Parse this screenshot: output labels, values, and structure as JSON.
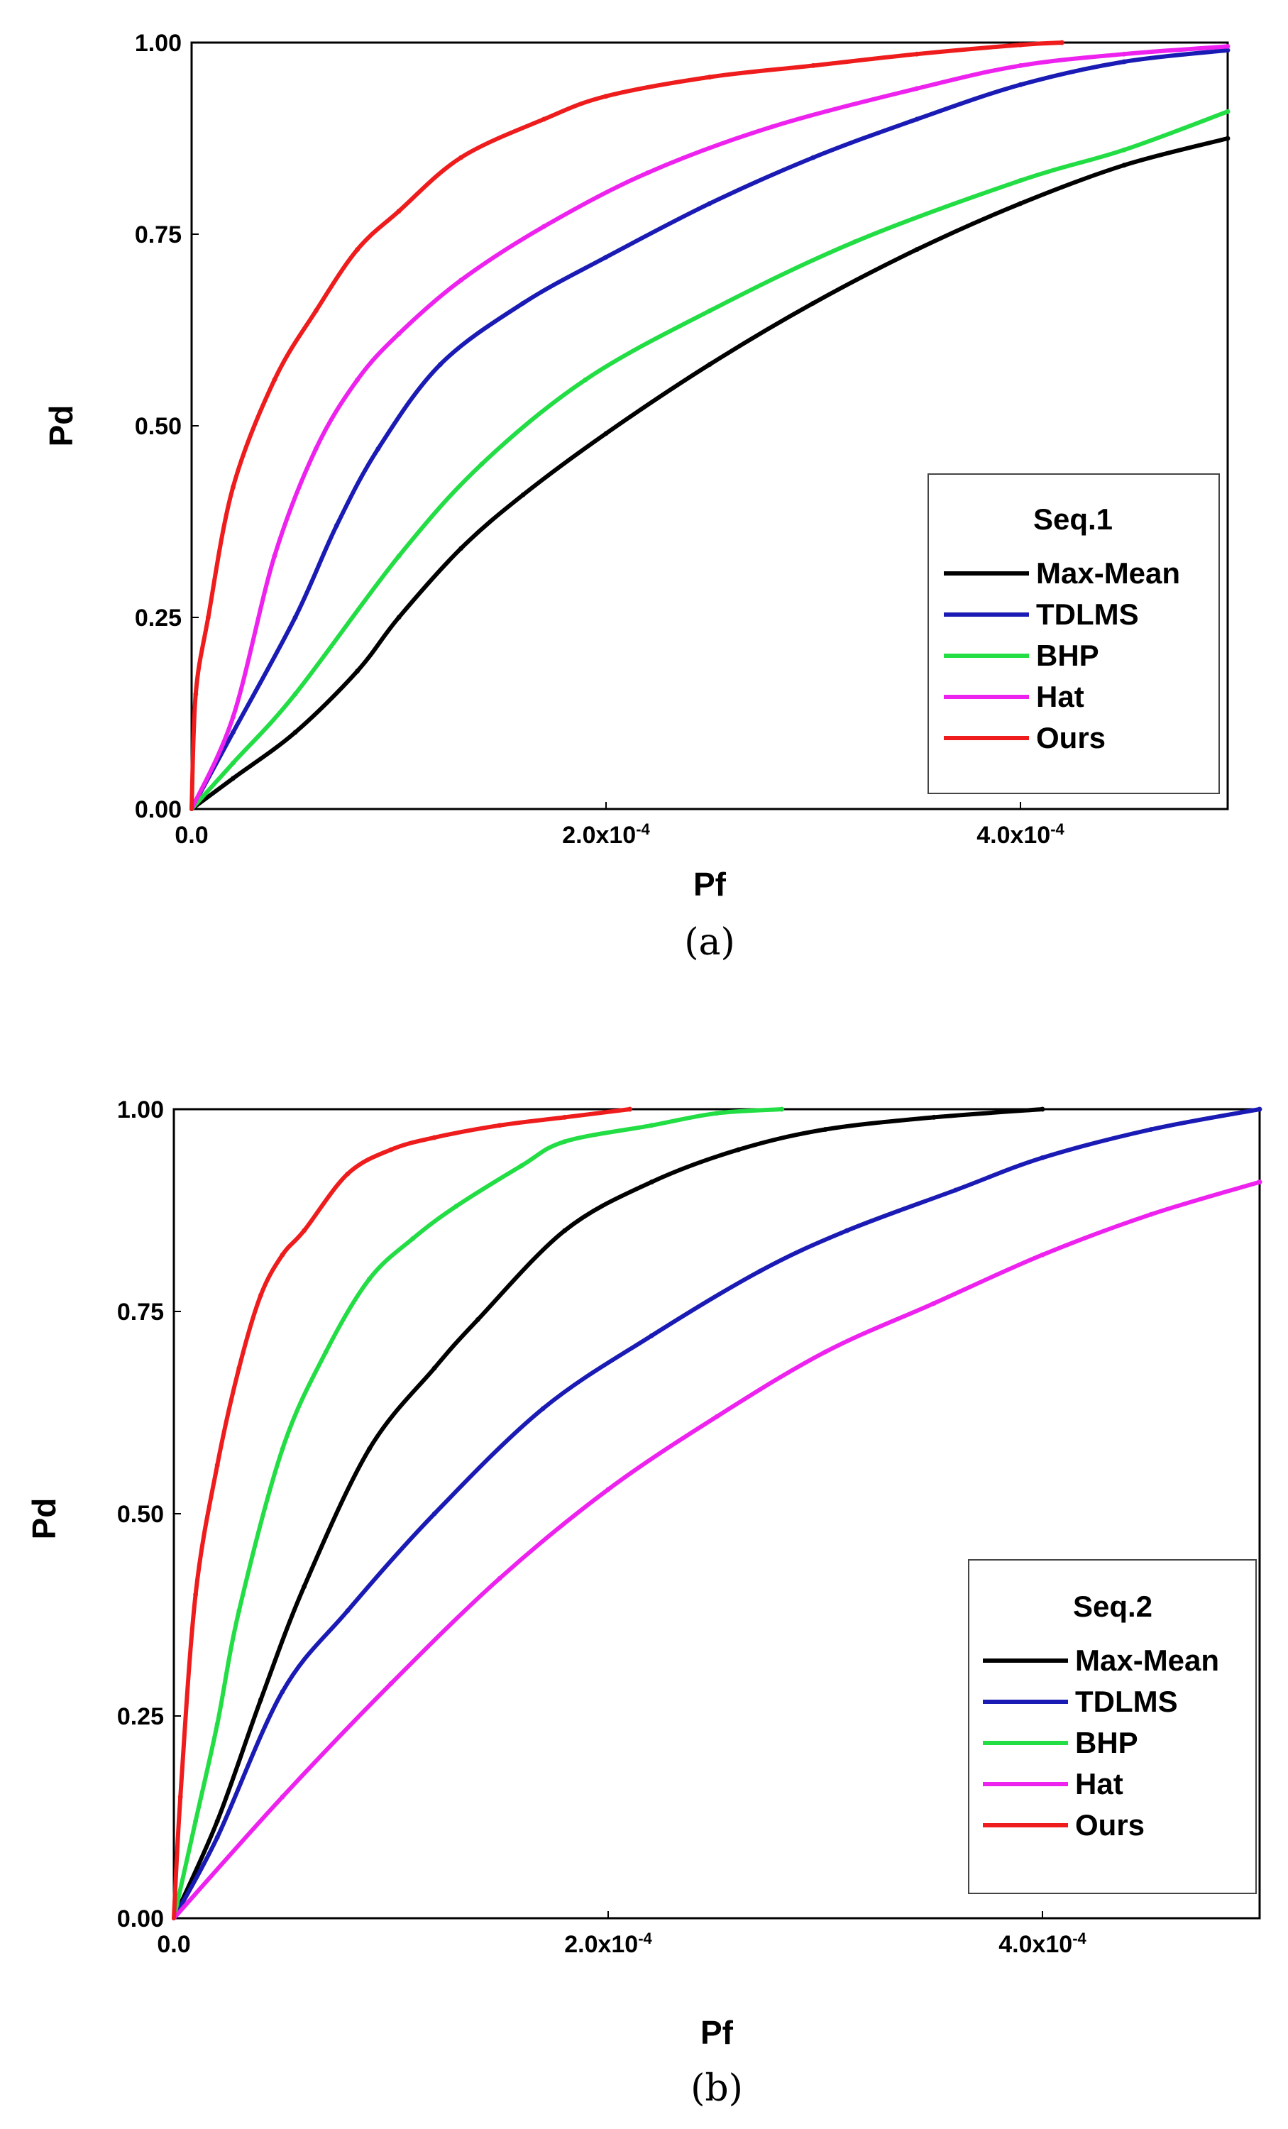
{
  "colors": {
    "Max-Mean": "#000000",
    "TDLMS": "#1a1ab4",
    "BHP": "#22dd44",
    "Hat": "#ee22ee",
    "Ours": "#ee1c1c"
  },
  "chart_data": [
    {
      "type": "line",
      "panel_label": "(a)",
      "xlabel": "Pf",
      "ylabel": "Pd",
      "xlim": [
        0,
        0.0005
      ],
      "ylim": [
        0,
        1
      ],
      "x_ticks": [
        {
          "value": 0,
          "label": "0.0"
        },
        {
          "value": 0.0002,
          "label": "2.0x10",
          "exp": "-4"
        },
        {
          "value": 0.0004,
          "label": "4.0x10",
          "exp": "-4"
        }
      ],
      "y_ticks": [
        {
          "value": 0,
          "label": "0.00"
        },
        {
          "value": 0.25,
          "label": "0.25"
        },
        {
          "value": 0.5,
          "label": "0.50"
        },
        {
          "value": 0.75,
          "label": "0.75"
        },
        {
          "value": 1,
          "label": "1.00"
        }
      ],
      "legend": {
        "title": "Seq.1",
        "position": "bottom-right"
      },
      "series": [
        {
          "name": "Max-Mean",
          "x": [
            0,
            2e-05,
            5e-05,
            8e-05,
            0.0001,
            0.00013,
            0.00016,
            0.0002,
            0.00025,
            0.0003,
            0.00035,
            0.0004,
            0.00045,
            0.0005
          ],
          "y": [
            0,
            0.04,
            0.1,
            0.18,
            0.25,
            0.34,
            0.41,
            0.49,
            0.58,
            0.66,
            0.73,
            0.79,
            0.84,
            0.875
          ]
        },
        {
          "name": "TDLMS",
          "x": [
            0,
            2e-05,
            5e-05,
            7e-05,
            9e-05,
            0.00012,
            0.00016,
            0.0002,
            0.00025,
            0.0003,
            0.00035,
            0.0004,
            0.00045,
            0.0005
          ],
          "y": [
            0,
            0.1,
            0.25,
            0.37,
            0.47,
            0.58,
            0.66,
            0.72,
            0.79,
            0.85,
            0.9,
            0.945,
            0.975,
            0.99
          ]
        },
        {
          "name": "BHP",
          "x": [
            0,
            2e-05,
            5e-05,
            0.0001,
            0.00014,
            0.00019,
            0.00025,
            0.00032,
            0.0004,
            0.00045,
            0.0005
          ],
          "y": [
            0,
            0.06,
            0.15,
            0.33,
            0.45,
            0.56,
            0.65,
            0.74,
            0.82,
            0.86,
            0.91
          ]
        },
        {
          "name": "Hat",
          "x": [
            0,
            2e-05,
            4e-05,
            6e-05,
            8e-05,
            0.0001,
            0.00013,
            0.00017,
            0.00022,
            0.00028,
            0.00035,
            0.0004,
            0.00045,
            0.0005
          ],
          "y": [
            0,
            0.12,
            0.33,
            0.47,
            0.56,
            0.62,
            0.69,
            0.76,
            0.83,
            0.89,
            0.94,
            0.97,
            0.985,
            0.995
          ]
        },
        {
          "name": "Ours",
          "x": [
            0,
            2e-06,
            8e-06,
            2e-05,
            4e-05,
            6e-05,
            8e-05,
            0.0001,
            0.00013,
            0.00017,
            0.0002,
            0.00025,
            0.0003,
            0.00035,
            0.0004,
            0.00042
          ],
          "y": [
            0,
            0.15,
            0.25,
            0.42,
            0.56,
            0.65,
            0.73,
            0.78,
            0.85,
            0.9,
            0.93,
            0.955,
            0.97,
            0.985,
            0.997,
            1.0
          ]
        }
      ]
    },
    {
      "type": "line",
      "panel_label": "(b)",
      "xlabel": "Pf",
      "ylabel": "Pd",
      "xlim": [
        0,
        0.0005
      ],
      "ylim": [
        0,
        1
      ],
      "x_ticks": [
        {
          "value": 0,
          "label": "0.0"
        },
        {
          "value": 0.0002,
          "label": "2.0x10",
          "exp": "-4"
        },
        {
          "value": 0.0004,
          "label": "4.0x10",
          "exp": "-4"
        }
      ],
      "y_ticks": [
        {
          "value": 0,
          "label": "0.00"
        },
        {
          "value": 0.25,
          "label": "0.25"
        },
        {
          "value": 0.5,
          "label": "0.50"
        },
        {
          "value": 0.75,
          "label": "0.75"
        },
        {
          "value": 1,
          "label": "1.00"
        }
      ],
      "legend": {
        "title": "Seq.2",
        "position": "bottom-right"
      },
      "series": [
        {
          "name": "Max-Mean",
          "x": [
            0,
            2e-05,
            4e-05,
            6e-05,
            9e-05,
            0.00012,
            0.00014,
            0.00018,
            0.00022,
            0.00026,
            0.0003,
            0.00035,
            0.0004
          ],
          "y": [
            0,
            0.12,
            0.27,
            0.41,
            0.58,
            0.68,
            0.74,
            0.85,
            0.91,
            0.95,
            0.975,
            0.99,
            1.0
          ]
        },
        {
          "name": "TDLMS",
          "x": [
            0,
            2e-05,
            5e-05,
            8e-05,
            0.00012,
            0.00017,
            0.00022,
            0.00027,
            0.00031,
            0.00036,
            0.0004,
            0.00045,
            0.0005
          ],
          "y": [
            0,
            0.1,
            0.28,
            0.38,
            0.5,
            0.63,
            0.72,
            0.8,
            0.85,
            0.9,
            0.94,
            0.975,
            1.0
          ]
        },
        {
          "name": "BHP",
          "x": [
            0,
            1e-05,
            2e-05,
            3e-05,
            5e-05,
            7e-05,
            9e-05,
            0.00011,
            0.00013,
            0.00016,
            0.00018,
            0.00022,
            0.00025,
            0.00028
          ],
          "y": [
            0,
            0.12,
            0.24,
            0.38,
            0.58,
            0.7,
            0.79,
            0.84,
            0.88,
            0.93,
            0.96,
            0.98,
            0.995,
            1.0
          ]
        },
        {
          "name": "Hat",
          "x": [
            0,
            5e-05,
            0.0001,
            0.00015,
            0.0002,
            0.00025,
            0.0003,
            0.00035,
            0.0004,
            0.00045,
            0.0005
          ],
          "y": [
            0,
            0.15,
            0.29,
            0.42,
            0.53,
            0.62,
            0.7,
            0.76,
            0.82,
            0.87,
            0.91
          ]
        },
        {
          "name": "Ours",
          "x": [
            0,
            3e-06,
            1e-05,
            2e-05,
            3e-05,
            4e-05,
            5e-05,
            6e-05,
            8e-05,
            0.0001,
            0.00012,
            0.00015,
            0.00018,
            0.00021
          ],
          "y": [
            0,
            0.15,
            0.4,
            0.56,
            0.68,
            0.77,
            0.82,
            0.85,
            0.92,
            0.95,
            0.965,
            0.98,
            0.99,
            1.0
          ]
        }
      ]
    }
  ]
}
